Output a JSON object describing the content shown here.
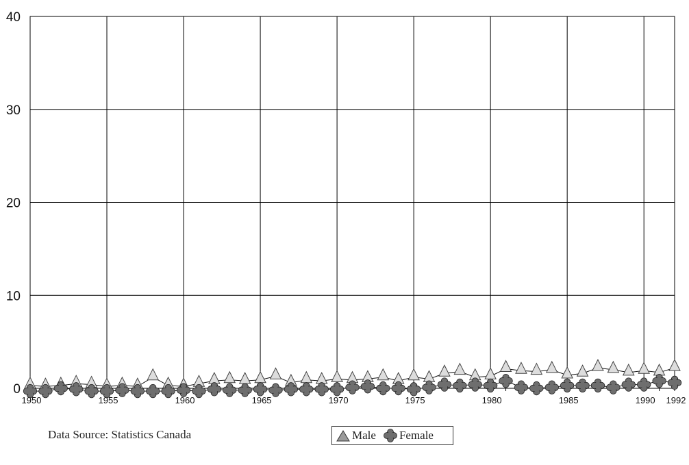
{
  "chart_data": {
    "type": "line",
    "x": [
      1950,
      1951,
      1952,
      1953,
      1954,
      1955,
      1956,
      1957,
      1958,
      1959,
      1960,
      1961,
      1962,
      1963,
      1964,
      1965,
      1966,
      1967,
      1968,
      1969,
      1970,
      1971,
      1972,
      1973,
      1974,
      1975,
      1976,
      1977,
      1978,
      1979,
      1980,
      1981,
      1982,
      1983,
      1984,
      1985,
      1986,
      1987,
      1988,
      1989,
      1990,
      1991,
      1992
    ],
    "x_ticks": [
      "1950",
      "1955",
      "1960",
      "1965",
      "1970",
      "1975",
      "1980",
      "1985",
      "1990",
      "1992"
    ],
    "y_ticks": [
      "0",
      "10",
      "20",
      "30",
      "40"
    ],
    "ylim": [
      0,
      40
    ],
    "grid": true,
    "legend_position": "bottom-center",
    "series": [
      {
        "name": "Male",
        "color": "#dddddd",
        "marker": "triangle",
        "values": [
          0.3,
          0.2,
          0.3,
          0.5,
          0.4,
          0.2,
          0.3,
          0.2,
          1.2,
          0.3,
          0.2,
          0.5,
          0.8,
          0.9,
          0.8,
          0.9,
          1.3,
          0.6,
          0.9,
          0.8,
          1.0,
          0.9,
          1.0,
          1.2,
          0.8,
          1.2,
          1.0,
          1.6,
          1.8,
          1.2,
          1.3,
          2.1,
          1.9,
          1.8,
          2.0,
          1.4,
          1.6,
          2.2,
          2.0,
          1.7,
          1.9,
          1.7,
          2.2
        ]
      },
      {
        "name": "Female",
        "color": "#6e6e6e",
        "marker": "flower",
        "values": [
          -0.3,
          -0.3,
          0.0,
          -0.1,
          -0.3,
          -0.3,
          -0.2,
          -0.3,
          -0.3,
          -0.3,
          -0.2,
          -0.3,
          -0.1,
          -0.2,
          -0.2,
          -0.1,
          -0.2,
          -0.1,
          -0.1,
          -0.1,
          -0.1,
          0.1,
          0.2,
          0.0,
          0.0,
          -0.1,
          0.1,
          0.4,
          0.3,
          0.4,
          0.3,
          0.8,
          0.1,
          0.0,
          0.1,
          0.3,
          0.3,
          0.3,
          0.1,
          0.4,
          0.4,
          0.8,
          0.6
        ]
      }
    ]
  },
  "source_note": "Data Source: Statistics Canada",
  "legend": {
    "male_label": "Male",
    "female_label": "Female"
  }
}
